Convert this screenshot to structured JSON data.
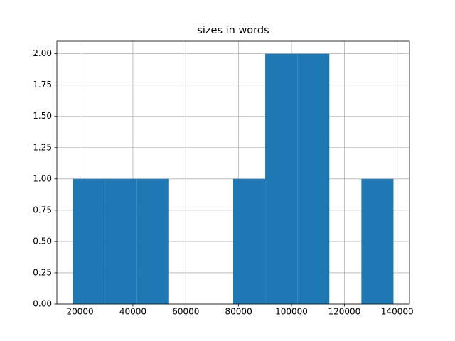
{
  "chart_data": {
    "type": "histogram",
    "title": "sizes in words",
    "bins": [
      17305,
      29433,
      41561,
      53689,
      65817,
      77945,
      90073,
      102201,
      114329,
      126457,
      138585
    ],
    "counts": [
      1,
      1,
      1,
      0,
      0,
      1,
      2,
      2,
      0,
      1
    ],
    "color": "#1f77b4",
    "xlim": [
      11241,
      144649
    ],
    "xticks": [
      20000,
      40000,
      60000,
      80000,
      100000,
      120000,
      140000
    ],
    "ylim": [
      0,
      2.1
    ],
    "yticks": [
      {
        "value": 0,
        "label": "0.00"
      },
      {
        "value": 0.25,
        "label": "0.25"
      },
      {
        "value": 0.5,
        "label": "0.50"
      },
      {
        "value": 0.75,
        "label": "0.75"
      },
      {
        "value": 1,
        "label": "1.00"
      },
      {
        "value": 1.25,
        "label": "1.25"
      },
      {
        "value": 1.5,
        "label": "1.50"
      },
      {
        "value": 1.75,
        "label": "1.75"
      },
      {
        "value": 2,
        "label": "2.00"
      }
    ],
    "grid": true
  }
}
